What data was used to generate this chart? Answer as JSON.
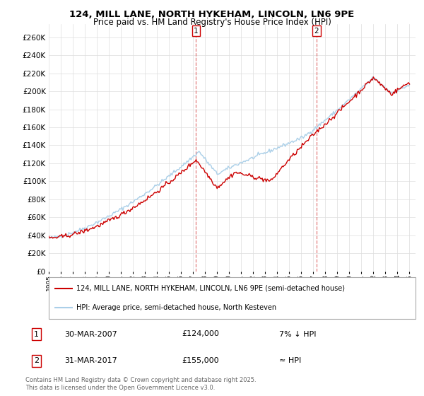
{
  "title_line1": "124, MILL LANE, NORTH HYKEHAM, LINCOLN, LN6 9PE",
  "title_line2": "Price paid vs. HM Land Registry's House Price Index (HPI)",
  "ylim": [
    0,
    275000
  ],
  "yticks": [
    0,
    20000,
    40000,
    60000,
    80000,
    100000,
    120000,
    140000,
    160000,
    180000,
    200000,
    220000,
    240000,
    260000
  ],
  "hpi_color": "#aacfe8",
  "price_color": "#cc0000",
  "vline_color": "#dd6666",
  "marker1_x": 2007.25,
  "marker2_x": 2017.25,
  "annotation1": {
    "label": "1",
    "date": "30-MAR-2007",
    "price": "£124,000",
    "note": "7% ↓ HPI"
  },
  "annotation2": {
    "label": "2",
    "date": "31-MAR-2017",
    "price": "£155,000",
    "note": "≈ HPI"
  },
  "legend_line1": "124, MILL LANE, NORTH HYKEHAM, LINCOLN, LN6 9PE (semi-detached house)",
  "legend_line2": "HPI: Average price, semi-detached house, North Kesteven",
  "footer": "Contains HM Land Registry data © Crown copyright and database right 2025.\nThis data is licensed under the Open Government Licence v3.0.",
  "background_color": "#ffffff",
  "grid_color": "#dddddd",
  "xlim_min": 1995,
  "xlim_max": 2025.5
}
